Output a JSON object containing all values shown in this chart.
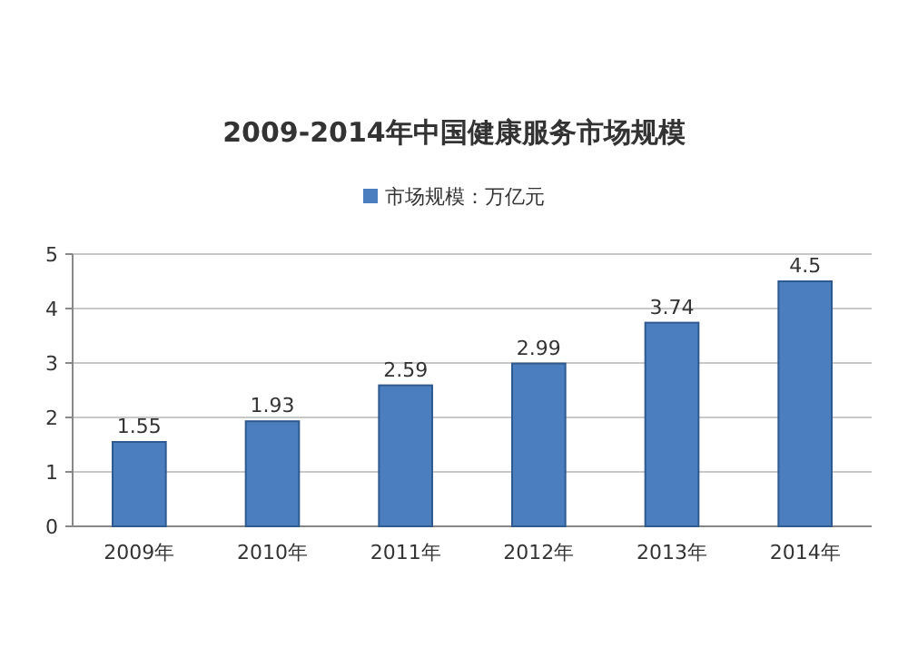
{
  "chart_data": {
    "type": "bar",
    "title": "2009-2014年中国健康服务市场规模",
    "categories": [
      "2009年",
      "2010年",
      "2011年",
      "2012年",
      "2013年",
      "2014年"
    ],
    "series": [
      {
        "name": "市场规模：万亿元",
        "color": "#4a7ebf",
        "values": [
          1.55,
          1.93,
          2.59,
          2.99,
          3.74,
          4.5
        ]
      }
    ],
    "ylim": [
      0,
      5
    ],
    "yticks": [
      0,
      1,
      2,
      3,
      4,
      5
    ],
    "grid": "y",
    "legend": "top",
    "data_labels": true
  }
}
